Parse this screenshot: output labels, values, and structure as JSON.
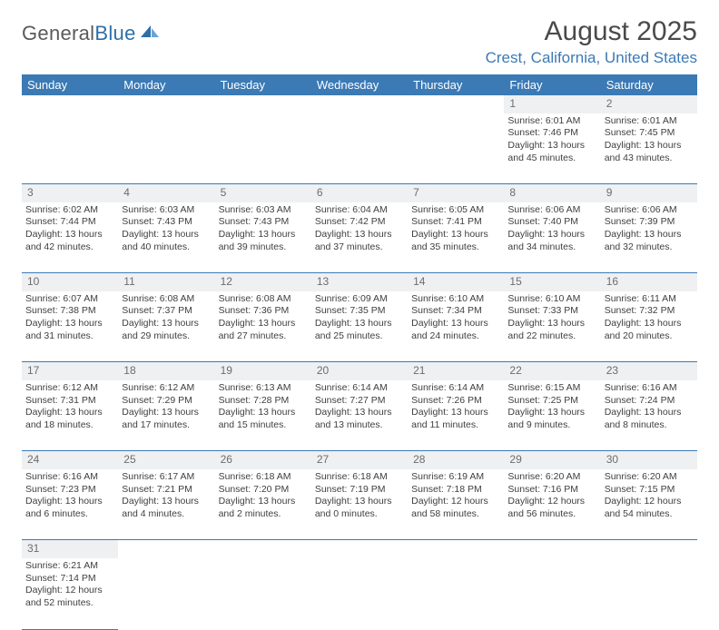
{
  "logo": {
    "general": "General",
    "blue": "Blue"
  },
  "title": "August 2025",
  "location": "Crest, California, United States",
  "colors": {
    "header_bg": "#3b7ab5",
    "header_text": "#ffffff",
    "accent": "#3b7ab5",
    "daynum_bg": "#eef0f2"
  },
  "weekdays": [
    "Sunday",
    "Monday",
    "Tuesday",
    "Wednesday",
    "Thursday",
    "Friday",
    "Saturday"
  ],
  "weeks": [
    {
      "days": [
        null,
        null,
        null,
        null,
        null,
        {
          "n": "1",
          "sunrise": "Sunrise: 6:01 AM",
          "sunset": "Sunset: 7:46 PM",
          "daylight1": "Daylight: 13 hours",
          "daylight2": "and 45 minutes."
        },
        {
          "n": "2",
          "sunrise": "Sunrise: 6:01 AM",
          "sunset": "Sunset: 7:45 PM",
          "daylight1": "Daylight: 13 hours",
          "daylight2": "and 43 minutes."
        }
      ]
    },
    {
      "days": [
        {
          "n": "3",
          "sunrise": "Sunrise: 6:02 AM",
          "sunset": "Sunset: 7:44 PM",
          "daylight1": "Daylight: 13 hours",
          "daylight2": "and 42 minutes."
        },
        {
          "n": "4",
          "sunrise": "Sunrise: 6:03 AM",
          "sunset": "Sunset: 7:43 PM",
          "daylight1": "Daylight: 13 hours",
          "daylight2": "and 40 minutes."
        },
        {
          "n": "5",
          "sunrise": "Sunrise: 6:03 AM",
          "sunset": "Sunset: 7:43 PM",
          "daylight1": "Daylight: 13 hours",
          "daylight2": "and 39 minutes."
        },
        {
          "n": "6",
          "sunrise": "Sunrise: 6:04 AM",
          "sunset": "Sunset: 7:42 PM",
          "daylight1": "Daylight: 13 hours",
          "daylight2": "and 37 minutes."
        },
        {
          "n": "7",
          "sunrise": "Sunrise: 6:05 AM",
          "sunset": "Sunset: 7:41 PM",
          "daylight1": "Daylight: 13 hours",
          "daylight2": "and 35 minutes."
        },
        {
          "n": "8",
          "sunrise": "Sunrise: 6:06 AM",
          "sunset": "Sunset: 7:40 PM",
          "daylight1": "Daylight: 13 hours",
          "daylight2": "and 34 minutes."
        },
        {
          "n": "9",
          "sunrise": "Sunrise: 6:06 AM",
          "sunset": "Sunset: 7:39 PM",
          "daylight1": "Daylight: 13 hours",
          "daylight2": "and 32 minutes."
        }
      ]
    },
    {
      "days": [
        {
          "n": "10",
          "sunrise": "Sunrise: 6:07 AM",
          "sunset": "Sunset: 7:38 PM",
          "daylight1": "Daylight: 13 hours",
          "daylight2": "and 31 minutes."
        },
        {
          "n": "11",
          "sunrise": "Sunrise: 6:08 AM",
          "sunset": "Sunset: 7:37 PM",
          "daylight1": "Daylight: 13 hours",
          "daylight2": "and 29 minutes."
        },
        {
          "n": "12",
          "sunrise": "Sunrise: 6:08 AM",
          "sunset": "Sunset: 7:36 PM",
          "daylight1": "Daylight: 13 hours",
          "daylight2": "and 27 minutes."
        },
        {
          "n": "13",
          "sunrise": "Sunrise: 6:09 AM",
          "sunset": "Sunset: 7:35 PM",
          "daylight1": "Daylight: 13 hours",
          "daylight2": "and 25 minutes."
        },
        {
          "n": "14",
          "sunrise": "Sunrise: 6:10 AM",
          "sunset": "Sunset: 7:34 PM",
          "daylight1": "Daylight: 13 hours",
          "daylight2": "and 24 minutes."
        },
        {
          "n": "15",
          "sunrise": "Sunrise: 6:10 AM",
          "sunset": "Sunset: 7:33 PM",
          "daylight1": "Daylight: 13 hours",
          "daylight2": "and 22 minutes."
        },
        {
          "n": "16",
          "sunrise": "Sunrise: 6:11 AM",
          "sunset": "Sunset: 7:32 PM",
          "daylight1": "Daylight: 13 hours",
          "daylight2": "and 20 minutes."
        }
      ]
    },
    {
      "days": [
        {
          "n": "17",
          "sunrise": "Sunrise: 6:12 AM",
          "sunset": "Sunset: 7:31 PM",
          "daylight1": "Daylight: 13 hours",
          "daylight2": "and 18 minutes."
        },
        {
          "n": "18",
          "sunrise": "Sunrise: 6:12 AM",
          "sunset": "Sunset: 7:29 PM",
          "daylight1": "Daylight: 13 hours",
          "daylight2": "and 17 minutes."
        },
        {
          "n": "19",
          "sunrise": "Sunrise: 6:13 AM",
          "sunset": "Sunset: 7:28 PM",
          "daylight1": "Daylight: 13 hours",
          "daylight2": "and 15 minutes."
        },
        {
          "n": "20",
          "sunrise": "Sunrise: 6:14 AM",
          "sunset": "Sunset: 7:27 PM",
          "daylight1": "Daylight: 13 hours",
          "daylight2": "and 13 minutes."
        },
        {
          "n": "21",
          "sunrise": "Sunrise: 6:14 AM",
          "sunset": "Sunset: 7:26 PM",
          "daylight1": "Daylight: 13 hours",
          "daylight2": "and 11 minutes."
        },
        {
          "n": "22",
          "sunrise": "Sunrise: 6:15 AM",
          "sunset": "Sunset: 7:25 PM",
          "daylight1": "Daylight: 13 hours",
          "daylight2": "and 9 minutes."
        },
        {
          "n": "23",
          "sunrise": "Sunrise: 6:16 AM",
          "sunset": "Sunset: 7:24 PM",
          "daylight1": "Daylight: 13 hours",
          "daylight2": "and 8 minutes."
        }
      ]
    },
    {
      "days": [
        {
          "n": "24",
          "sunrise": "Sunrise: 6:16 AM",
          "sunset": "Sunset: 7:23 PM",
          "daylight1": "Daylight: 13 hours",
          "daylight2": "and 6 minutes."
        },
        {
          "n": "25",
          "sunrise": "Sunrise: 6:17 AM",
          "sunset": "Sunset: 7:21 PM",
          "daylight1": "Daylight: 13 hours",
          "daylight2": "and 4 minutes."
        },
        {
          "n": "26",
          "sunrise": "Sunrise: 6:18 AM",
          "sunset": "Sunset: 7:20 PM",
          "daylight1": "Daylight: 13 hours",
          "daylight2": "and 2 minutes."
        },
        {
          "n": "27",
          "sunrise": "Sunrise: 6:18 AM",
          "sunset": "Sunset: 7:19 PM",
          "daylight1": "Daylight: 13 hours",
          "daylight2": "and 0 minutes."
        },
        {
          "n": "28",
          "sunrise": "Sunrise: 6:19 AM",
          "sunset": "Sunset: 7:18 PM",
          "daylight1": "Daylight: 12 hours",
          "daylight2": "and 58 minutes."
        },
        {
          "n": "29",
          "sunrise": "Sunrise: 6:20 AM",
          "sunset": "Sunset: 7:16 PM",
          "daylight1": "Daylight: 12 hours",
          "daylight2": "and 56 minutes."
        },
        {
          "n": "30",
          "sunrise": "Sunrise: 6:20 AM",
          "sunset": "Sunset: 7:15 PM",
          "daylight1": "Daylight: 12 hours",
          "daylight2": "and 54 minutes."
        }
      ]
    },
    {
      "days": [
        {
          "n": "31",
          "sunrise": "Sunrise: 6:21 AM",
          "sunset": "Sunset: 7:14 PM",
          "daylight1": "Daylight: 12 hours",
          "daylight2": "and 52 minutes."
        },
        null,
        null,
        null,
        null,
        null,
        null
      ]
    }
  ]
}
